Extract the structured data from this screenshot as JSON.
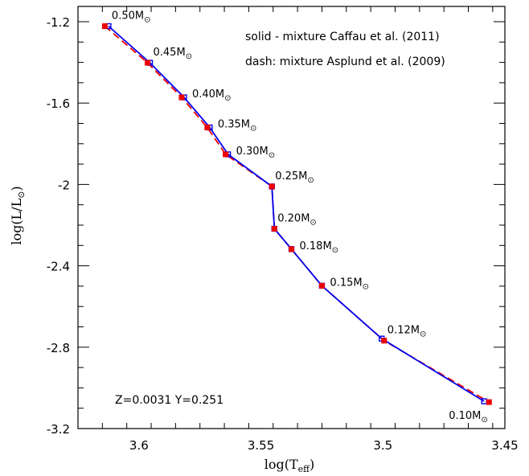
{
  "chart_data": {
    "type": "line",
    "xlabel": "log(T",
    "xlabel_sub": "eff",
    "xlabel_end": ")",
    "ylabel": "log(L/L",
    "ylabel_end": ")",
    "xlim": [
      3.625,
      3.45
    ],
    "ylim": [
      -3.2,
      -1.125
    ],
    "x_reversed": true,
    "x_ticks": [
      3.6,
      3.55,
      3.5,
      3.45
    ],
    "x_tick_labels": [
      "3.6",
      "3.55",
      "3.5",
      "3.45"
    ],
    "y_ticks": [
      -1.2,
      -1.6,
      -2.0,
      -2.4,
      -2.8,
      -3.2
    ],
    "y_tick_labels": [
      "-1.2",
      "-1.6",
      "-2",
      "-2.4",
      "-2.8",
      "-3.2"
    ],
    "legend": {
      "solid": "solid - mixture Caffau et al. (2011)",
      "dash": "dash: mixture Asplund et al. (2009)"
    },
    "annotation": "Z=0.0031  Y=0.251",
    "sun_symbol": "⊙",
    "series": [
      {
        "style": "solid",
        "color": "#0000ee",
        "x": [
          3.6125,
          3.5955,
          3.5815,
          3.571,
          3.5635,
          3.5455,
          3.5445,
          3.5375,
          3.525,
          3.5005,
          3.4585
        ],
        "y": [
          -1.222,
          -1.402,
          -1.572,
          -1.72,
          -1.852,
          -2.01,
          -2.218,
          -2.318,
          -2.498,
          -2.758,
          -3.066
        ]
      },
      {
        "style": "dashed",
        "color": "#ee0000",
        "x": [
          3.614,
          3.5965,
          3.5825,
          3.572,
          3.5645,
          3.5455,
          3.5445,
          3.5375,
          3.525,
          3.4995,
          3.4565
        ],
        "y": [
          -1.222,
          -1.402,
          -1.572,
          -1.72,
          -1.852,
          -2.01,
          -2.218,
          -2.318,
          -2.498,
          -2.768,
          -3.07
        ]
      }
    ],
    "mass_labels": [
      {
        "text": "0.50M",
        "x": 3.6125,
        "y": -1.222,
        "pos": "above-right"
      },
      {
        "text": "0.45M",
        "x": 3.5955,
        "y": -1.402,
        "pos": "above-right"
      },
      {
        "text": "0.40M",
        "x": 3.5815,
        "y": -1.572,
        "pos": "right"
      },
      {
        "text": "0.35M",
        "x": 3.571,
        "y": -1.72,
        "pos": "right"
      },
      {
        "text": "0.30M",
        "x": 3.5635,
        "y": -1.852,
        "pos": "right"
      },
      {
        "text": "0.25M",
        "x": 3.5455,
        "y": -2.01,
        "pos": "above-right"
      },
      {
        "text": "0.20M",
        "x": 3.5445,
        "y": -2.218,
        "pos": "above-right"
      },
      {
        "text": "0.18M",
        "x": 3.5375,
        "y": -2.318,
        "pos": "right"
      },
      {
        "text": "0.15M",
        "x": 3.525,
        "y": -2.498,
        "pos": "right"
      },
      {
        "text": "0.12M",
        "x": 3.4995,
        "y": -2.768,
        "pos": "above-right"
      },
      {
        "text": "0.10M",
        "x": 3.4585,
        "y": -3.066,
        "pos": "below-left"
      }
    ]
  }
}
